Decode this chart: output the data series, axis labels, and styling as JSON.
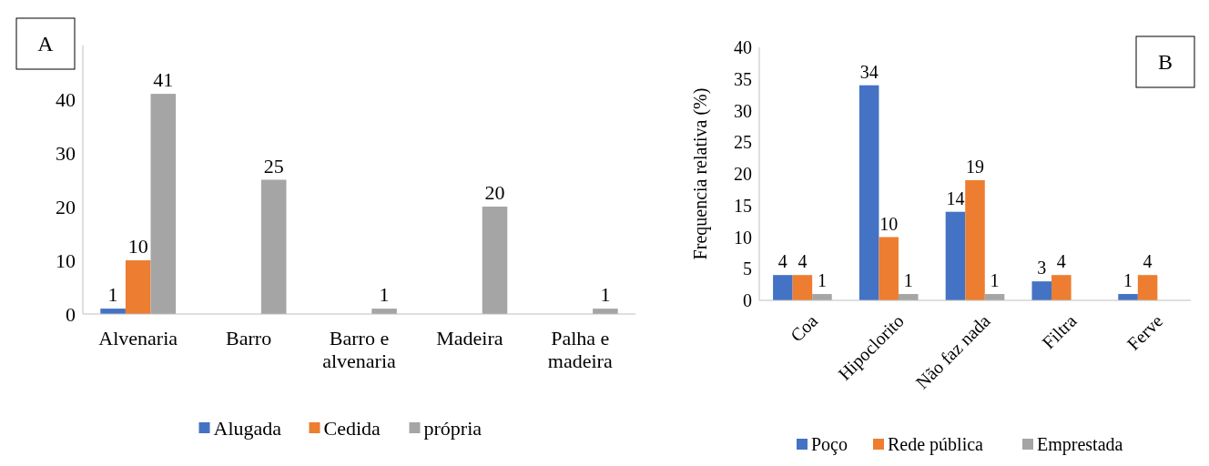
{
  "chart_data": [
    {
      "type": "bar",
      "categories": [
        "Alvenaria",
        "Barro",
        "Barro e alvenaria",
        "Madeira",
        "Palha e madeira"
      ],
      "series": [
        {
          "name": "Alugada",
          "color": "#4472c4",
          "values": [
            1,
            null,
            null,
            null,
            null
          ]
        },
        {
          "name": "Cedida",
          "color": "#ed7d31",
          "values": [
            10,
            null,
            null,
            null,
            null
          ]
        },
        {
          "name": "própria",
          "color": "#a5a5a5",
          "values": [
            41,
            25,
            1,
            20,
            1
          ]
        }
      ],
      "ylim": [
        0,
        50
      ],
      "yticks": [
        0,
        10,
        20,
        30,
        40
      ],
      "data_labels": true,
      "legend": "bottom",
      "annotations": [
        "A"
      ]
    },
    {
      "type": "bar",
      "categories": [
        "Coa",
        "Hipoclorito",
        "Não faz nada",
        "Filtra",
        "Ferve"
      ],
      "series": [
        {
          "name": "Poço",
          "color": "#4472c4",
          "values": [
            4,
            34,
            14,
            3,
            1
          ]
        },
        {
          "name": "Rede pública",
          "color": "#ed7d31",
          "values": [
            4,
            10,
            19,
            4,
            4
          ]
        },
        {
          "name": "Emprestada",
          "color": "#a5a5a5",
          "values": [
            1,
            1,
            1,
            null,
            null
          ]
        }
      ],
      "ylabel": "Frequencia relativa (%)",
      "ylim": [
        0,
        40
      ],
      "yticks": [
        0,
        5,
        10,
        15,
        20,
        25,
        30,
        35,
        40
      ],
      "data_labels": true,
      "legend": "bottom",
      "annotations": [
        "B"
      ]
    }
  ]
}
